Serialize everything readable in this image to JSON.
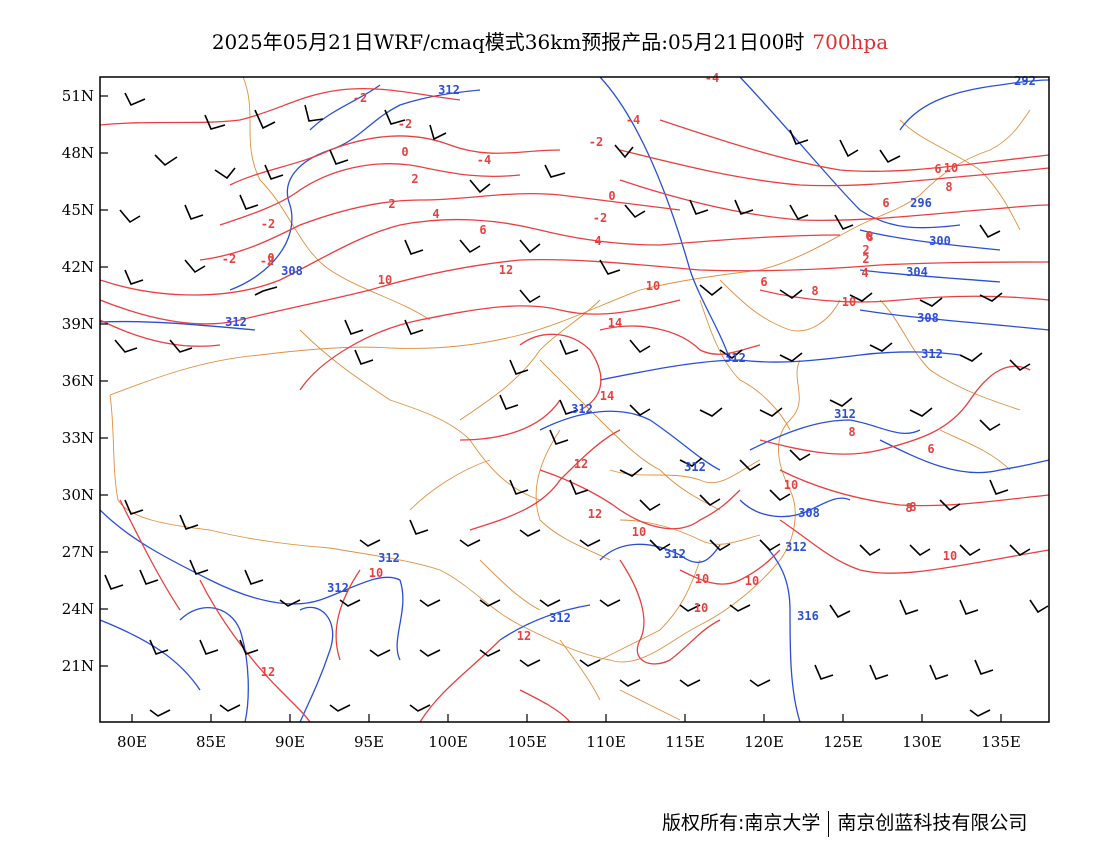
{
  "header": {
    "title": "2025年05月21日WRF/cmaq模式36km预报产品:05月21日00时",
    "level": "700hpa"
  },
  "colors": {
    "temperature_contour": "#e84040",
    "height_contour": "#2a4fd6",
    "boundary": "#e09040",
    "wind_barb": "#000000",
    "level_text": "#e03030"
  },
  "map": {
    "lon_labels": [
      "80E",
      "85E",
      "90E",
      "95E",
      "100E",
      "105E",
      "110E",
      "115E",
      "120E",
      "125E",
      "130E",
      "135E"
    ],
    "lat_labels": [
      "51N",
      "48N",
      "45N",
      "42N",
      "39N",
      "36N",
      "33N",
      "30N",
      "27N",
      "24N",
      "21N"
    ],
    "height_labels": [
      "312",
      "292",
      "296",
      "300",
      "304",
      "308",
      "312",
      "312",
      "312",
      "312",
      "312",
      "312",
      "312",
      "312",
      "312",
      "312",
      "308",
      "312",
      "316",
      "308"
    ],
    "temp_labels": [
      "-2",
      "-2",
      "-4",
      "-4",
      "0",
      "-2",
      "-4",
      "-2",
      "2",
      "0",
      "-2",
      "2",
      "4",
      "6",
      "4",
      "6",
      "8",
      "6",
      "8",
      "6",
      "2",
      "4",
      "2",
      "10",
      "-2",
      "-2",
      "0",
      "10",
      "12",
      "10",
      "8",
      "10",
      "6",
      "8",
      "14",
      "14",
      "12",
      "12",
      "10",
      "10",
      "10",
      "10",
      "8",
      "10",
      "12",
      "12",
      "10",
      "8",
      "6",
      "10"
    ]
  },
  "footer": {
    "copyright_left": "版权所有:南京大学",
    "copyright_right": "南京创蓝科技有限公司"
  }
}
